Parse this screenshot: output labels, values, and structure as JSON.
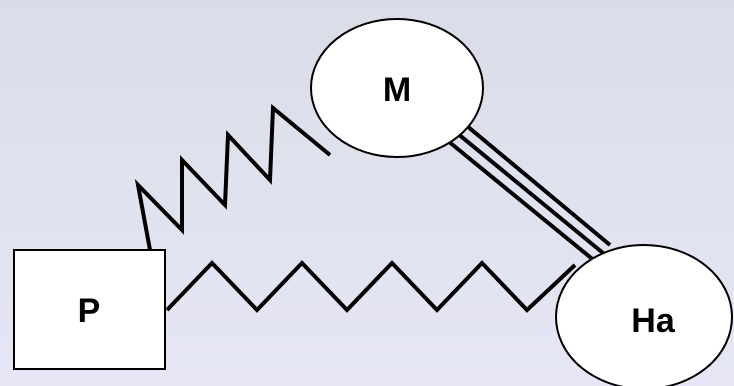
{
  "diagram": {
    "nodes": {
      "p": {
        "label": "P",
        "shape": "square"
      },
      "m": {
        "label": "M",
        "shape": "circle"
      },
      "ha": {
        "label": "Ha",
        "shape": "circle"
      }
    },
    "edges": [
      {
        "from": "P",
        "to": "M",
        "style": "zigzag"
      },
      {
        "from": "P",
        "to": "Ha",
        "style": "zigzag"
      },
      {
        "from": "M",
        "to": "Ha",
        "style": "triple-line"
      }
    ],
    "colors": {
      "background_top": "#d9dde8",
      "background_bottom": "#e6e6f6",
      "shape_fill": "#ffffff",
      "stroke": "#000000"
    }
  }
}
